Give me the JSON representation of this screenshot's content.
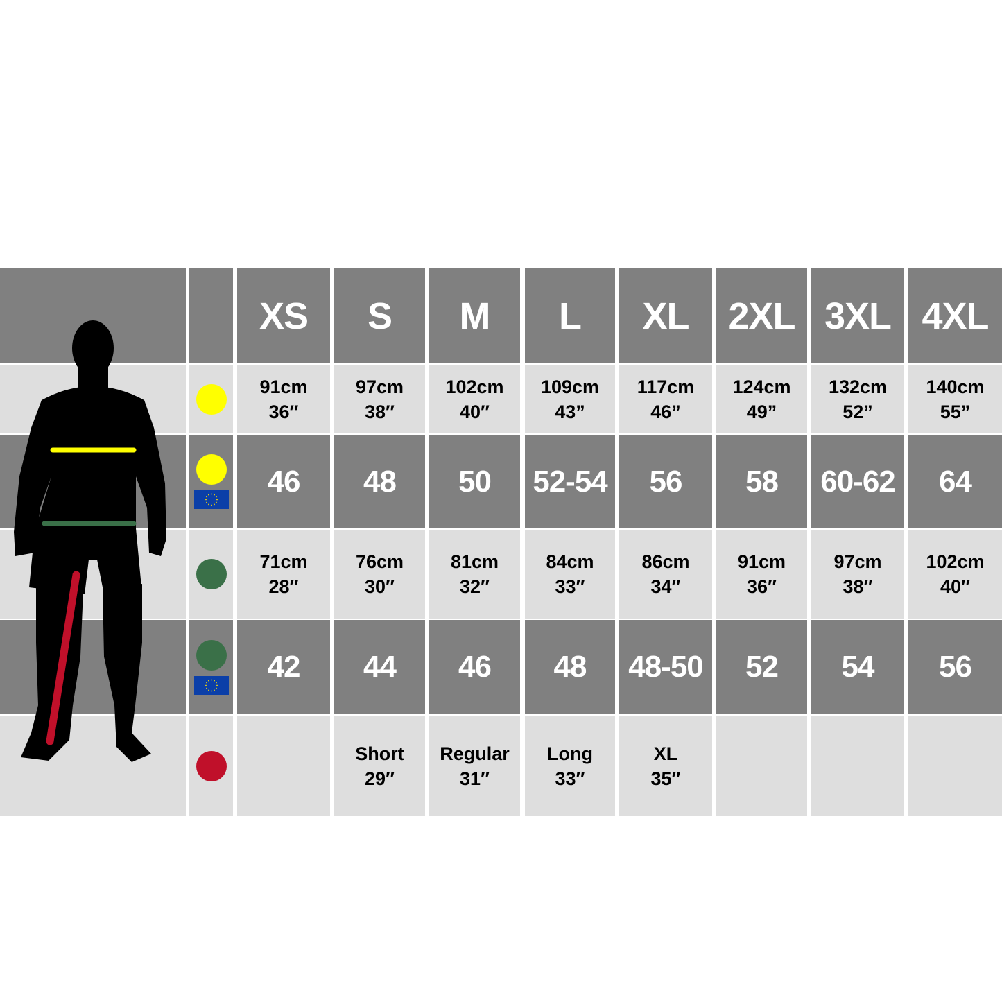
{
  "colors": {
    "chest": "#ffff00",
    "waist": "#3a7048",
    "leg": "#c0102a",
    "eu_flag": "#0b3fa8",
    "header_bg": "#808080",
    "light_bg": "#dedede"
  },
  "sizes": [
    "XS",
    "S",
    "M",
    "L",
    "XL",
    "2XL",
    "3XL",
    "4XL"
  ],
  "rows": [
    {
      "type": "measure",
      "icon": "chest-yellow-dot-icon",
      "color": "chest",
      "eu": false,
      "cells": [
        [
          "91cm",
          "36″"
        ],
        [
          "97cm",
          "38″"
        ],
        [
          "102cm",
          "40″"
        ],
        [
          "109cm",
          "43”"
        ],
        [
          "117cm",
          "46”"
        ],
        [
          "124cm",
          "49”"
        ],
        [
          "132cm",
          "52”"
        ],
        [
          "140cm",
          "55”"
        ]
      ]
    },
    {
      "type": "eu",
      "icon": "chest-yellow-dot-icon",
      "color": "chest",
      "eu": true,
      "cells": [
        "46",
        "48",
        "50",
        "52-54",
        "56",
        "58",
        "60-62",
        "64"
      ]
    },
    {
      "type": "measure",
      "icon": "waist-green-dot-icon",
      "color": "waist",
      "eu": false,
      "cells": [
        [
          "71cm",
          "28″"
        ],
        [
          "76cm",
          "30″"
        ],
        [
          "81cm",
          "32″"
        ],
        [
          "84cm",
          "33″"
        ],
        [
          "86cm",
          "34″"
        ],
        [
          "91cm",
          "36″"
        ],
        [
          "97cm",
          "38″"
        ],
        [
          "102cm",
          "40″"
        ]
      ]
    },
    {
      "type": "eu",
      "icon": "waist-green-dot-icon",
      "color": "waist",
      "eu": true,
      "cells": [
        "42",
        "44",
        "46",
        "48",
        "48-50",
        "52",
        "54",
        "56"
      ]
    },
    {
      "type": "measure",
      "icon": "leg-red-dot-icon",
      "color": "leg",
      "eu": false,
      "cells": [
        [],
        [
          "Short",
          "29″"
        ],
        [
          "Regular",
          "31″"
        ],
        [
          "Long",
          "33″"
        ],
        [
          "XL",
          "35″"
        ],
        [],
        [],
        []
      ]
    }
  ]
}
